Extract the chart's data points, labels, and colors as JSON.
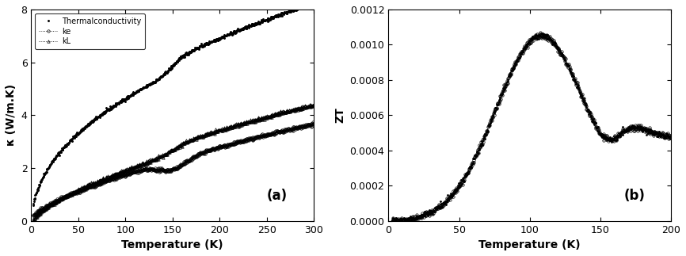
{
  "panel_a": {
    "xlabel": "Temperature (K)",
    "ylabel": "κ (W/m.K)",
    "xlim": [
      0,
      300
    ],
    "ylim": [
      0,
      8
    ],
    "yticks": [
      0,
      2,
      4,
      6,
      8
    ],
    "xticks": [
      0,
      50,
      100,
      150,
      200,
      250,
      300
    ],
    "label_letter": "(a)",
    "legend": [
      "Thermalconductivity",
      "ke",
      "kL"
    ]
  },
  "panel_b": {
    "xlabel": "Temperature (K)",
    "ylabel": "ZT",
    "xlim": [
      0,
      200
    ],
    "ylim": [
      0,
      0.0012
    ],
    "yticks": [
      0.0,
      0.0002,
      0.0004,
      0.0006,
      0.0008,
      0.001,
      0.0012
    ],
    "xticks": [
      0,
      50,
      100,
      150,
      200
    ],
    "label_letter": "(b)"
  },
  "background_color": "#ffffff"
}
